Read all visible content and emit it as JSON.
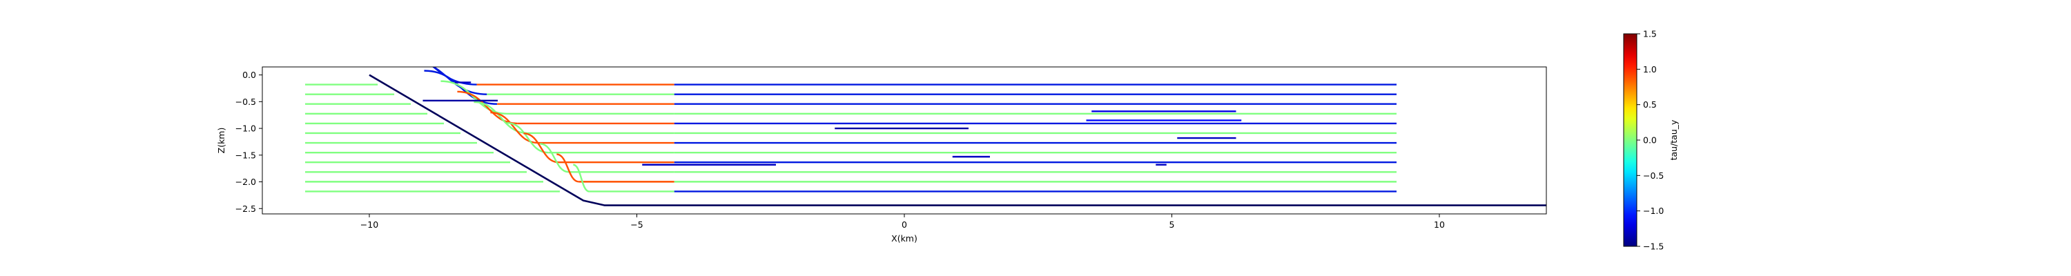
{
  "chart_data": {
    "type": "line",
    "xlabel": "X(km)",
    "ylabel": "Z(km)",
    "xlim": [
      -12.0,
      12.0
    ],
    "ylim": [
      -2.6,
      0.15
    ],
    "x_ticks": [
      -10,
      -5,
      0,
      5,
      10
    ],
    "y_ticks": [
      0.0,
      -0.5,
      -1.0,
      -1.5,
      -2.0,
      -2.5
    ],
    "x_tick_labels": [
      "−10",
      "−5",
      "0",
      "5",
      "10"
    ],
    "y_tick_labels": [
      "0.0",
      "−0.5",
      "−1.0",
      "−1.5",
      "−2.0",
      "−2.5"
    ],
    "colorbar": {
      "label": "tau/tau_y",
      "min": -1.5,
      "max": 1.5,
      "ticks": [
        1.5,
        1.0,
        0.5,
        0.0,
        -0.5,
        -1.0,
        -1.5
      ],
      "tick_labels": [
        "1.5",
        "1.0",
        "0.5",
        "0.0",
        "−0.5",
        "−1.0",
        "−1.5"
      ]
    },
    "fault": {
      "color": "#00005a",
      "points": [
        [
          -10.0,
          0.0
        ],
        [
          -6.0,
          -2.35
        ],
        [
          -5.6,
          -2.44
        ],
        [
          12.0,
          -2.44
        ]
      ]
    },
    "strands": {
      "rows": 12,
      "z_top": -0.18,
      "z_bottom": -2.18,
      "x_start": -11.2,
      "x_end": 9.2,
      "bend_width_top": 1.6,
      "bend_width_bottom": 0.3,
      "rows_right_blue": [
        0,
        1,
        2,
        4,
        6,
        8,
        11
      ],
      "colors": {
        "green": "#80ff80",
        "red": "#ff5000",
        "blue": "#0018e0"
      }
    },
    "short_strands": [
      {
        "x": [
          -8.4,
          -8.1
        ],
        "z": -0.14,
        "value": -1.3
      },
      {
        "x": [
          -9.0,
          -7.6
        ],
        "z": -0.48,
        "value": -1.4
      },
      {
        "x": [
          -1.3,
          1.2
        ],
        "z": -1.0,
        "value": -1.4
      },
      {
        "x": [
          -4.9,
          -2.4
        ],
        "z": -1.68,
        "value": -1.3
      },
      {
        "x": [
          0.9,
          1.6
        ],
        "z": -1.53,
        "value": -1.3
      },
      {
        "x": [
          4.7,
          4.9
        ],
        "z": -1.68,
        "value": -1.3
      },
      {
        "x": [
          5.1,
          6.2
        ],
        "z": -1.18,
        "value": -1.3
      },
      {
        "x": [
          3.5,
          6.2
        ],
        "z": -0.68,
        "value": -1.2
      },
      {
        "x": [
          3.4,
          6.3
        ],
        "z": -0.85,
        "value": -1.1
      }
    ]
  }
}
